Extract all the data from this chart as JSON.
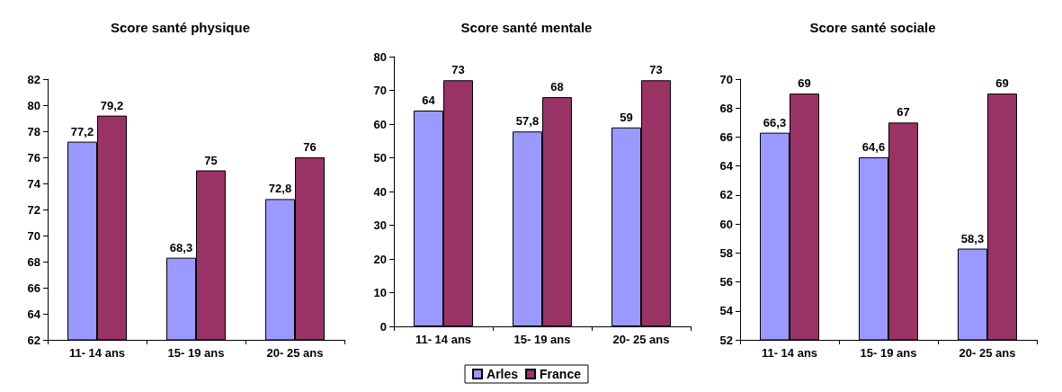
{
  "chart_data": [
    {
      "type": "bar",
      "title": "Score santé physique",
      "categories": [
        "11- 14 ans",
        "15- 19 ans",
        "20- 25 ans"
      ],
      "series": [
        {
          "color": "#9999ff",
          "values": [
            77.2,
            68.3,
            72.8
          ],
          "value_labels": [
            "77,2",
            "68,3",
            "72,8"
          ]
        },
        {
          "color": "#993366",
          "values": [
            79.2,
            75,
            76
          ],
          "value_labels": [
            "79,2",
            "75",
            "76"
          ]
        }
      ],
      "ylim": [
        62,
        82
      ],
      "yticks": [
        62,
        64,
        66,
        68,
        70,
        72,
        74,
        76,
        78,
        80,
        82
      ],
      "grid": false,
      "legend": false
    },
    {
      "type": "bar",
      "title": "Score santé mentale",
      "categories": [
        "11- 14 ans",
        "15- 19 ans",
        "20- 25 ans"
      ],
      "series": [
        {
          "name": "Arles",
          "color": "#9999ff",
          "values": [
            64,
            57.8,
            59
          ],
          "value_labels": [
            "64",
            "57,8",
            "59"
          ]
        },
        {
          "name": "France",
          "color": "#993366",
          "values": [
            73,
            68,
            73
          ],
          "value_labels": [
            "73",
            "68",
            "73"
          ]
        }
      ],
      "ylim": [
        0,
        80
      ],
      "yticks": [
        0,
        10,
        20,
        30,
        40,
        50,
        60,
        70,
        80
      ],
      "grid": false,
      "legend": "bottom"
    },
    {
      "type": "bar",
      "title": "Score santé sociale",
      "categories": [
        "11- 14 ans",
        "15- 19 ans",
        "20- 25 ans"
      ],
      "series": [
        {
          "color": "#9999ff",
          "values": [
            66.3,
            64.6,
            58.3
          ],
          "value_labels": [
            "66,3",
            "64,6",
            "58,3"
          ]
        },
        {
          "color": "#993366",
          "values": [
            69,
            67,
            69
          ],
          "value_labels": [
            "69",
            "67",
            "69"
          ]
        }
      ],
      "ylim": [
        52,
        70
      ],
      "yticks": [
        52,
        54,
        56,
        58,
        60,
        62,
        64,
        66,
        68,
        70
      ],
      "grid": false,
      "legend": false
    }
  ]
}
